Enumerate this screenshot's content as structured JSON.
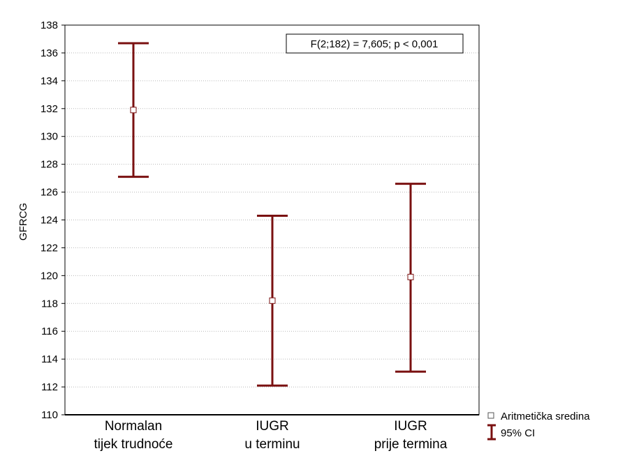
{
  "chart_data": {
    "type": "errorbar",
    "ylabel": "GFRCG",
    "ylim": [
      110,
      138
    ],
    "y_ticks": [
      110,
      112,
      114,
      116,
      118,
      120,
      122,
      124,
      126,
      128,
      130,
      132,
      134,
      136,
      138
    ],
    "grid": "horizontal dotted",
    "categories": [
      {
        "line1": "Normalan",
        "line2": "tijek trudnoće"
      },
      {
        "line1": "IUGR",
        "line2": "u terminu"
      },
      {
        "line1": "IUGR",
        "line2": "prije termina"
      }
    ],
    "series": [
      {
        "name": "Aritmetička sredina",
        "values": [
          131.9,
          118.2,
          119.9
        ]
      },
      {
        "name": "95% CI",
        "lower": [
          127.1,
          112.1,
          113.1
        ],
        "upper": [
          136.7,
          124.3,
          126.6
        ]
      }
    ],
    "annotation": "F(2;182) = 7,605; p < 0,001",
    "legend": {
      "position": "bottom-right",
      "items": [
        "Aritmetička sredina",
        "95% CI"
      ]
    },
    "colors": {
      "errorbar": "#7a1010",
      "marker_fill": "#ffffff",
      "marker_stroke": "#7a1010",
      "grid": "#b8b8b8"
    }
  }
}
